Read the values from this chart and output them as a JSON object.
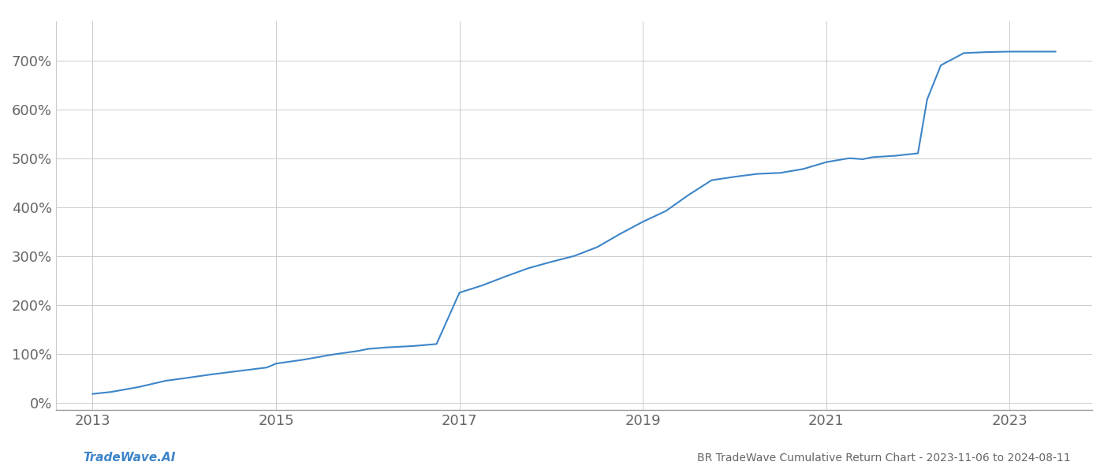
{
  "footer_left": "TradeWave.AI",
  "footer_right": "BR TradeWave Cumulative Return Chart - 2023-11-06 to 2024-08-11",
  "line_color": "#3d85c8",
  "background_color": "#ffffff",
  "grid_color": "#cccccc",
  "text_color": "#666666",
  "x_values": [
    2013.0,
    2013.2,
    2013.5,
    2013.8,
    2014.0,
    2014.3,
    2014.6,
    2014.9,
    2015.0,
    2015.3,
    2015.6,
    2015.9,
    2016.0,
    2016.2,
    2016.5,
    2016.75,
    2017.0,
    2017.25,
    2017.5,
    2017.75,
    2018.0,
    2018.25,
    2018.5,
    2018.75,
    2019.0,
    2019.25,
    2019.5,
    2019.75,
    2020.0,
    2020.25,
    2020.5,
    2020.75,
    2021.0,
    2021.25,
    2021.4,
    2021.5,
    2021.75,
    2022.0,
    2022.1,
    2022.25,
    2022.5,
    2022.75,
    2023.0,
    2023.25,
    2023.5
  ],
  "y_values": [
    18,
    22,
    32,
    45,
    50,
    58,
    65,
    72,
    80,
    88,
    98,
    106,
    110,
    113,
    116,
    120,
    225,
    240,
    258,
    275,
    288,
    300,
    318,
    345,
    370,
    392,
    425,
    455,
    462,
    468,
    470,
    478,
    492,
    500,
    498,
    502,
    505,
    510,
    620,
    690,
    715,
    717,
    718,
    718,
    718
  ],
  "xlim": [
    2012.6,
    2023.9
  ],
  "ylim": [
    -15,
    780
  ],
  "yticks": [
    0,
    100,
    200,
    300,
    400,
    500,
    600,
    700
  ],
  "xticks": [
    2013,
    2015,
    2017,
    2019,
    2021,
    2023
  ]
}
